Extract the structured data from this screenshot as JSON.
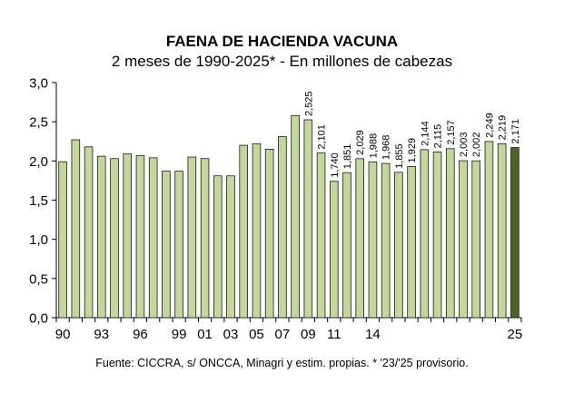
{
  "chart_data": {
    "type": "bar",
    "title": "FAENA DE HACIENDA VACUNA",
    "subtitle": "2 meses de 1990-2025* - En millones de cabezas",
    "source": "Fuente: CICCRA, s/ ONCCA, Minagri y estim. propias. * '23/'25 provisorio.",
    "xlabel": "",
    "ylabel": "",
    "ylim": [
      0,
      3
    ],
    "y_ticks": [
      "0,0",
      "0,5",
      "1,0",
      "1,5",
      "2,0",
      "2,5",
      "3,0"
    ],
    "x_tick_labels": [
      {
        "category": "1990",
        "label": "90"
      },
      {
        "category": "1993",
        "label": "93"
      },
      {
        "category": "1996",
        "label": "96"
      },
      {
        "category": "1999",
        "label": "99"
      },
      {
        "category": "2001",
        "label": "01"
      },
      {
        "category": "2003",
        "label": "03"
      },
      {
        "category": "2005",
        "label": "05"
      },
      {
        "category": "2007",
        "label": "07"
      },
      {
        "category": "2009",
        "label": "09"
      },
      {
        "category": "2011",
        "label": "11"
      },
      {
        "category": "2014",
        "label": "14"
      },
      {
        "category": "2025",
        "label": "25"
      }
    ],
    "categories": [
      "1990",
      "1991",
      "1992",
      "1993",
      "1994",
      "1995",
      "1996",
      "1997",
      "1998",
      "1999",
      "2000",
      "2001",
      "2002",
      "2003",
      "2004",
      "2005",
      "2006",
      "2007",
      "2008",
      "2009",
      "2010",
      "2011",
      "2012",
      "2013",
      "2014",
      "2015",
      "2016",
      "2017",
      "2018",
      "2019",
      "2020",
      "2021",
      "2022",
      "2023",
      "2024",
      "2025"
    ],
    "values": [
      1.99,
      2.27,
      2.18,
      2.06,
      2.03,
      2.09,
      2.07,
      2.04,
      1.87,
      1.87,
      2.05,
      2.03,
      1.81,
      1.81,
      2.2,
      2.22,
      2.15,
      2.31,
      2.58,
      2.525,
      2.101,
      1.74,
      1.851,
      2.029,
      1.988,
      1.968,
      1.855,
      1.929,
      2.144,
      2.115,
      2.157,
      2.003,
      2.002,
      2.249,
      2.219,
      2.171
    ],
    "data_labels": [
      "",
      "",
      "",
      "",
      "",
      "",
      "",
      "",
      "",
      "",
      "",
      "",
      "",
      "",
      "",
      "",
      "",
      "",
      "",
      "2,525",
      "2,101",
      "1,740",
      "1,851",
      "2,029",
      "1,988",
      "1,968",
      "1,855",
      "1,929",
      "2,144",
      "2,115",
      "2,157",
      "2,003",
      "2,002",
      "2,249",
      "2,219",
      "2,171"
    ],
    "bar_color": "#c4d79b",
    "highlight_color": "#4f6228",
    "highlight_index": 35,
    "grid": false
  }
}
